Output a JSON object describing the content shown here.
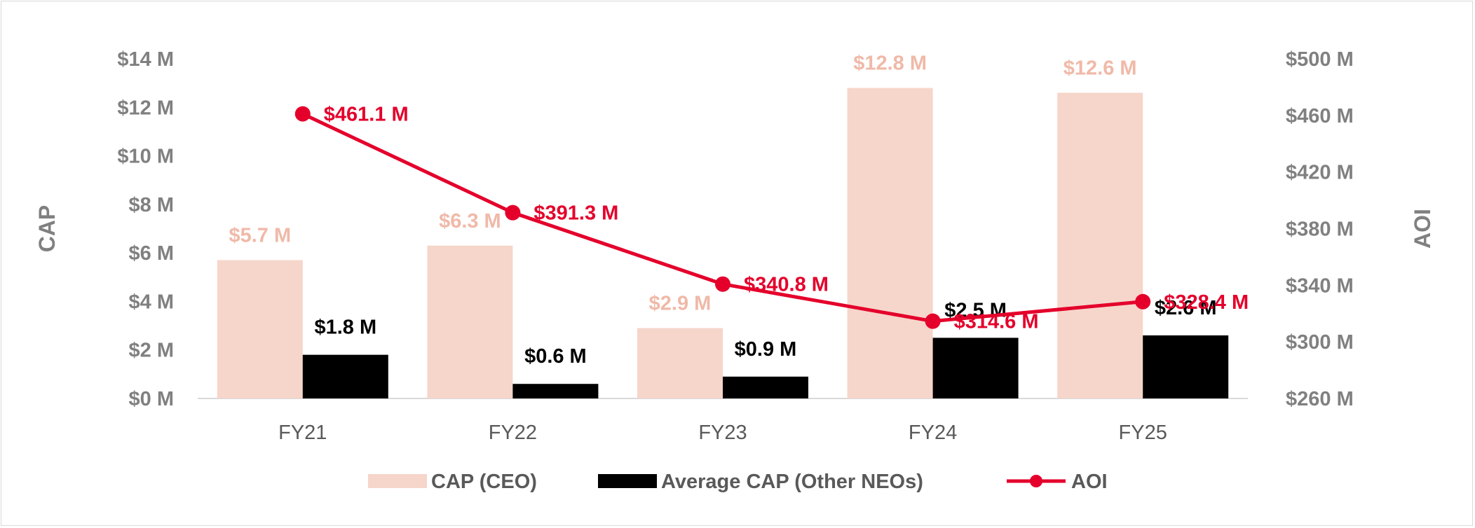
{
  "chart_data": {
    "type": "bar",
    "categories": [
      "FY21",
      "FY22",
      "FY23",
      "FY24",
      "FY25"
    ],
    "y_left": {
      "label": "CAP",
      "min": 0,
      "max": 14,
      "step": 2,
      "tick_labels": [
        "$0 M",
        "$2 M",
        "$4 M",
        "$6 M",
        "$8 M",
        "$10 M",
        "$12 M",
        "$14 M"
      ]
    },
    "y_right": {
      "label": "AOI",
      "min": 260,
      "max": 500,
      "step": 40,
      "tick_labels": [
        "$260 M",
        "$300 M",
        "$340 M",
        "$380 M",
        "$420 M",
        "$460 M",
        "$500 M"
      ]
    },
    "series": [
      {
        "name": "CAP (CEO)",
        "kind": "bar",
        "axis": "left",
        "color": "#f6d5ca",
        "label_color": "#f0b9a8",
        "values": [
          5.7,
          6.3,
          2.9,
          12.8,
          12.6
        ],
        "labels": [
          "$5.7 M",
          "$6.3 M",
          "$2.9 M",
          "$12.8 M",
          "$12.6 M"
        ]
      },
      {
        "name": "Average CAP (Other NEOs)",
        "kind": "bar",
        "axis": "left",
        "color": "#000000",
        "label_color": "#000000",
        "values": [
          1.8,
          0.6,
          0.9,
          2.5,
          2.6
        ],
        "labels": [
          "$1.8 M",
          "$0.6 M",
          "$0.9 M",
          "$2.5 M",
          "$2.6 M"
        ]
      },
      {
        "name": "AOI",
        "kind": "line",
        "axis": "right",
        "color": "#e4002b",
        "label_color": "#e4002b",
        "values": [
          461.1,
          391.3,
          340.8,
          314.6,
          328.4
        ],
        "labels": [
          "$461.1 M",
          "$391.3 M",
          "$340.8 M",
          "$314.6 M",
          "$328.4 M"
        ]
      }
    ],
    "legend_position": "bottom",
    "grid": false
  }
}
